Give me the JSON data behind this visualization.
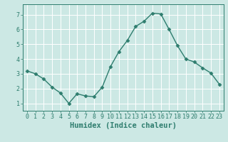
{
  "x": [
    0,
    1,
    2,
    3,
    4,
    5,
    6,
    7,
    8,
    9,
    10,
    11,
    12,
    13,
    14,
    15,
    16,
    17,
    18,
    19,
    20,
    21,
    22,
    23
  ],
  "y": [
    3.2,
    3.0,
    2.65,
    2.1,
    1.7,
    1.0,
    1.65,
    1.5,
    1.45,
    2.1,
    3.5,
    4.5,
    5.25,
    6.2,
    6.55,
    7.1,
    7.05,
    6.0,
    4.9,
    4.0,
    3.8,
    3.4,
    3.05,
    2.3
  ],
  "line_color": "#2e7d6e",
  "marker": "D",
  "marker_size": 2.5,
  "bg_color": "#cce8e4",
  "grid_color": "#ffffff",
  "xlabel": "Humidex (Indice chaleur)",
  "xlim": [
    -0.5,
    23.5
  ],
  "ylim": [
    0.5,
    7.7
  ],
  "yticks": [
    1,
    2,
    3,
    4,
    5,
    6,
    7
  ],
  "xticks": [
    0,
    1,
    2,
    3,
    4,
    5,
    6,
    7,
    8,
    9,
    10,
    11,
    12,
    13,
    14,
    15,
    16,
    17,
    18,
    19,
    20,
    21,
    22,
    23
  ],
  "tick_color": "#2e7d6e",
  "label_fontsize": 6,
  "xlabel_fontsize": 7.5,
  "line_width": 1.0
}
